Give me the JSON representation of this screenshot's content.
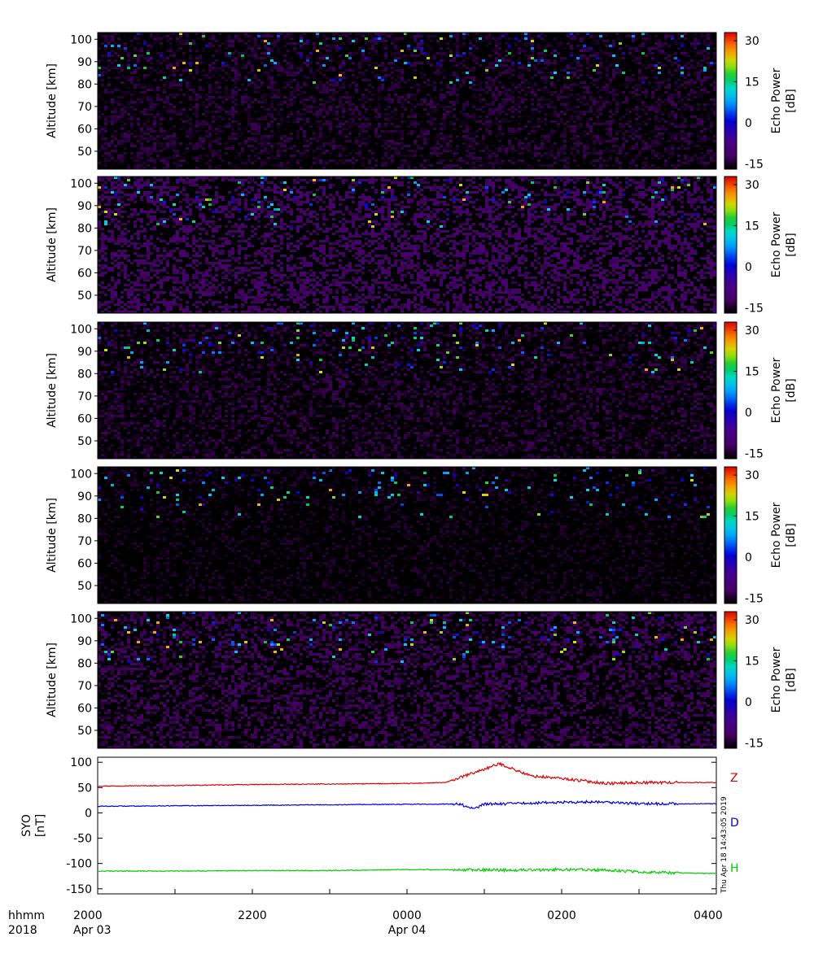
{
  "chart_data": [
    {
      "type": "heatmap",
      "panel": 1,
      "ylabel": "Altitude [km]",
      "yticks": [
        "100",
        "90",
        "80",
        "70",
        "60",
        "50"
      ],
      "ylim": [
        42,
        103
      ],
      "colorbar": {
        "label_line1": "Echo Power",
        "label_line2": "[dB]",
        "ticks": [
          "30",
          "15",
          "0",
          "-15"
        ],
        "range": [
          -17,
          33
        ]
      },
      "background_db": -14.5,
      "seed": 11
    },
    {
      "type": "heatmap",
      "panel": 2,
      "ylabel": "Altitude [km]",
      "yticks": [
        "100",
        "90",
        "80",
        "70",
        "60",
        "50"
      ],
      "ylim": [
        42,
        103
      ],
      "colorbar": {
        "label_line1": "Echo Power",
        "label_line2": "[dB]",
        "ticks": [
          "30",
          "15",
          "0",
          "-15"
        ],
        "range": [
          -17,
          33
        ]
      },
      "background_db": -11.5,
      "seed": 23
    },
    {
      "type": "heatmap",
      "panel": 3,
      "ylabel": "Altitude [km]",
      "yticks": [
        "100",
        "90",
        "80",
        "70",
        "60",
        "50"
      ],
      "ylim": [
        42,
        103
      ],
      "colorbar": {
        "label_line1": "Echo Power",
        "label_line2": "[dB]",
        "ticks": [
          "30",
          "15",
          "0",
          "-15"
        ],
        "range": [
          -17,
          33
        ]
      },
      "background_db": -14.5,
      "seed": 37
    },
    {
      "type": "heatmap",
      "panel": 4,
      "ylabel": "Altitude [km]",
      "yticks": [
        "100",
        "90",
        "80",
        "70",
        "60",
        "50"
      ],
      "ylim": [
        42,
        103
      ],
      "colorbar": {
        "label_line1": "Echo Power",
        "label_line2": "[dB]",
        "ticks": [
          "30",
          "15",
          "0",
          "-15"
        ],
        "range": [
          -17,
          33
        ]
      },
      "background_db": -16,
      "seed": 41
    },
    {
      "type": "heatmap",
      "panel": 5,
      "ylabel": "Altitude [km]",
      "yticks": [
        "100",
        "90",
        "80",
        "70",
        "60",
        "50"
      ],
      "ylim": [
        42,
        103
      ],
      "colorbar": {
        "label_line1": "Echo Power",
        "label_line2": "[dB]",
        "ticks": [
          "30",
          "15",
          "0",
          "-15"
        ],
        "range": [
          -17,
          33
        ]
      },
      "background_db": -13,
      "seed": 53
    },
    {
      "type": "line",
      "panel": 6,
      "ylabel_line1": "SYO",
      "ylabel_line2": "[nT]",
      "yticks": [
        "100",
        "50",
        "0",
        "-50",
        "-100",
        "-150"
      ],
      "ylim": [
        -160,
        110
      ],
      "series": [
        {
          "name": "Z",
          "color": "#dd0000",
          "x": [
            20.0,
            21.0,
            22.0,
            23.0,
            0.0,
            0.5,
            1.2,
            1.6,
            2.0,
            2.6,
            3.0,
            4.0
          ],
          "y": [
            53,
            54,
            56,
            57,
            58,
            60,
            97,
            73,
            68,
            58,
            60,
            60
          ]
        },
        {
          "name": "D",
          "color": "#0000dd",
          "x": [
            20.0,
            21.0,
            22.0,
            23.0,
            0.0,
            1.3,
            2.0,
            2.5,
            3.0,
            4.0
          ],
          "y": [
            13,
            14,
            15,
            16,
            17,
            18,
            21,
            22,
            18,
            18
          ]
        },
        {
          "name": "H",
          "color": "#00cc00",
          "x": [
            20.0,
            21.0,
            22.0,
            23.0,
            0.0,
            1.3,
            2.0,
            2.6,
            3.0,
            4.0
          ],
          "y": [
            -115,
            -115,
            -114,
            -114,
            -112,
            -113,
            -112,
            -113,
            -117,
            -120
          ]
        }
      ],
      "timestamp": "Thu Apr 18 14:43:05 2019"
    }
  ],
  "xaxis": {
    "label_line1": "hhmm",
    "label_line2": "2018",
    "ticks": [
      {
        "x": 20.0,
        "label": "2000",
        "date": "Apr 03"
      },
      {
        "x": 22.0,
        "label": "2200",
        "date": ""
      },
      {
        "x": 0.0,
        "label": "0000",
        "date": "Apr 04"
      },
      {
        "x": 2.0,
        "label": "0200",
        "date": ""
      },
      {
        "x": 4.0,
        "label": "0400",
        "date": ""
      }
    ]
  },
  "colors": {
    "background": "#ffffff",
    "axes": "#000000"
  }
}
